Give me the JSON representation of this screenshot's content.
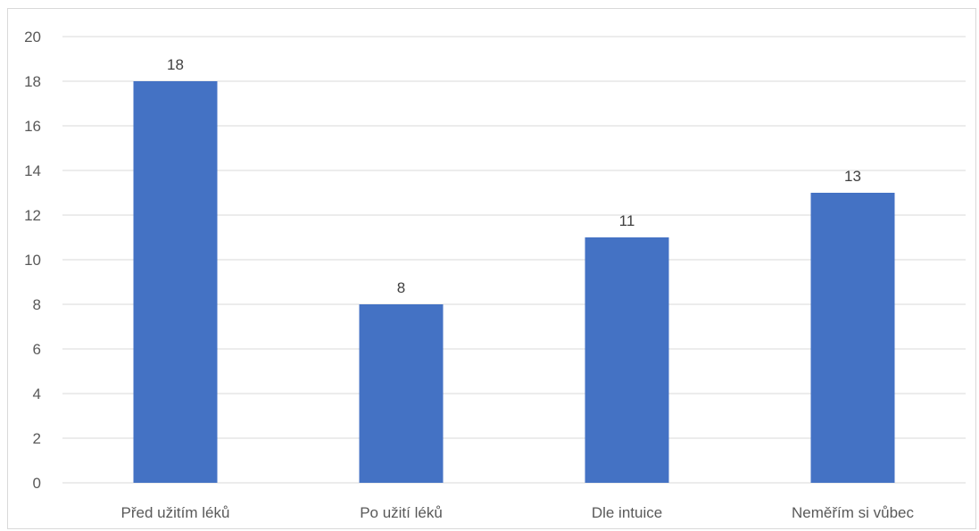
{
  "chart_data": {
    "type": "bar",
    "categories": [
      "Před užitím léků",
      "Po užití léků",
      "Dle intuice",
      "Neměřím si vůbec"
    ],
    "values": [
      18,
      8,
      11,
      13
    ],
    "data_labels": [
      "18",
      "8",
      "11",
      "13"
    ],
    "title": "",
    "xlabel": "",
    "ylabel": "",
    "ylim": [
      0,
      20
    ],
    "yticks": [
      0,
      2,
      4,
      6,
      8,
      10,
      12,
      14,
      16,
      18,
      20
    ],
    "ytick_labels": [
      "0",
      "2",
      "4",
      "6",
      "8",
      "10",
      "12",
      "14",
      "16",
      "18",
      "20"
    ],
    "grid": true,
    "legend": "none",
    "bar_color": "#4472C4",
    "gridline_color": "#d9d9d9"
  }
}
